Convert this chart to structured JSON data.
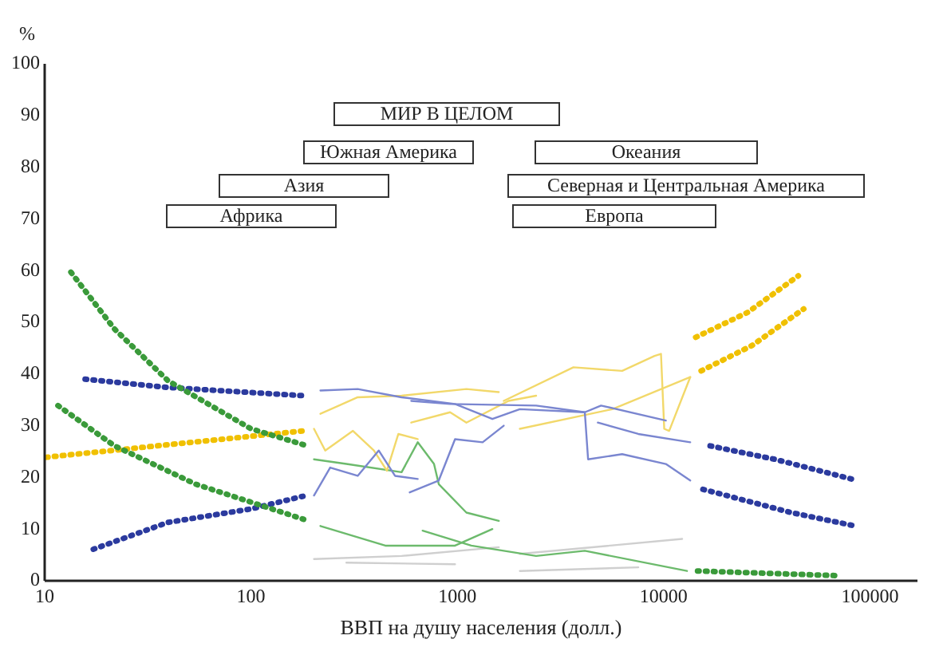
{
  "chart_data": {
    "type": "line",
    "xlabel": "ВВП на душу населения (долл.)",
    "ylabel": "%",
    "log": "x",
    "xlim": [
      10,
      170000
    ],
    "xticks": [
      10,
      100,
      1000,
      10000,
      100000
    ],
    "ylim": [
      0,
      100
    ],
    "yticks": [
      0,
      10,
      20,
      30,
      40,
      50,
      60,
      70,
      80,
      90,
      100
    ],
    "marker": "none",
    "annotations": [
      "МИР В ЦЕЛОМ",
      "Южная Америка",
      "Азия",
      "Африка",
      "Океания",
      "Северная и Центральная Америка",
      "Европа"
    ],
    "series": [
      {
        "color": "#3a9a3a",
        "line_style": "dotted",
        "x": [
          13.4,
          21.8,
          39.6,
          100,
          191
        ],
        "values": [
          59.7,
          48.7,
          38.7,
          29.4,
          26
        ]
      },
      {
        "color": "#3a9a3a",
        "line_style": "dotted",
        "x": [
          11.6,
          21.8,
          53.9,
          180
        ],
        "values": [
          33.9,
          26.1,
          18.7,
          11.9
        ]
      },
      {
        "color": "#2b3a9e",
        "line_style": "dotted",
        "x": [
          15.7,
          39.6,
          180
        ],
        "values": [
          39,
          37.4,
          35.8
        ]
      },
      {
        "color": "#2b3a9e",
        "line_style": "dotted",
        "x": [
          17.2,
          39.6,
          100,
          185
        ],
        "values": [
          6.1,
          11.3,
          13.9,
          16.5
        ]
      },
      {
        "color": "#f0c000",
        "line_style": "dotted",
        "x": [
          10.2,
          29.6,
          73,
          180
        ],
        "values": [
          23.9,
          25.8,
          27.4,
          29
        ]
      },
      {
        "color": "#f0c000",
        "line_style": "dotted",
        "x": [
          14300,
          25500,
          45000
        ],
        "values": [
          47.1,
          51.9,
          59
        ]
      },
      {
        "color": "#f0c000",
        "line_style": "dotted",
        "x": [
          15200,
          26800,
          47800
        ],
        "values": [
          40.6,
          45.5,
          52.6
        ]
      },
      {
        "color": "#2b3a9e",
        "line_style": "dotted",
        "x": [
          16800,
          34600,
          87000
        ],
        "values": [
          26.1,
          23.5,
          19.4
        ]
      },
      {
        "color": "#2b3a9e",
        "line_style": "dotted",
        "x": [
          15500,
          41500,
          85000
        ],
        "values": [
          17.7,
          13.2,
          10.6
        ]
      },
      {
        "color": "#3a9a3a",
        "line_style": "dotted",
        "x": [
          14600,
          70000
        ],
        "values": [
          1.9,
          1.0
        ]
      },
      {
        "color": "#7a86d0",
        "line_style": "solid",
        "x": [
          217,
          329,
          537,
          975,
          1479,
          2010,
          4150,
          4976,
          10250
        ],
        "values": [
          36.8,
          37.1,
          35.5,
          34.2,
          31.3,
          33.2,
          32.6,
          33.9,
          31.0
        ]
      },
      {
        "color": "#7a86d0",
        "line_style": "solid",
        "x": [
          598,
          923,
          2410,
          4150,
          4305,
          6295,
          10250,
          13460
        ],
        "values": [
          34.8,
          34.2,
          33.9,
          32.6,
          23.5,
          24.5,
          22.6,
          19.4
        ]
      },
      {
        "color": "#7a86d0",
        "line_style": "solid",
        "x": [
          202,
          242,
          329,
          416,
          499,
          643
        ],
        "values": [
          16.5,
          21.9,
          20.3,
          25.2,
          20.3,
          19.7
        ]
      },
      {
        "color": "#7a86d0",
        "line_style": "solid",
        "x": [
          588,
          813,
          975,
          1327,
          1679
        ],
        "values": [
          17.1,
          19.4,
          27.4,
          26.8,
          30.0
        ]
      },
      {
        "color": "#7a86d0",
        "line_style": "solid",
        "x": [
          4797,
          7540,
          13460
        ],
        "values": [
          30.6,
          28.4,
          26.8
        ]
      },
      {
        "color": "#f2d86a",
        "line_style": "solid",
        "x": [
          217,
          329,
          537,
          1107,
          1589
        ],
        "values": [
          32.3,
          35.5,
          35.8,
          37.1,
          36.5
        ]
      },
      {
        "color": "#f2d86a",
        "line_style": "solid",
        "x": [
          202,
          229,
          312,
          394,
          456,
          518,
          643
        ],
        "values": [
          29.4,
          25.2,
          29.0,
          25.2,
          21.3,
          28.4,
          27.4
        ]
      },
      {
        "color": "#f2d86a",
        "line_style": "solid",
        "x": [
          598,
          923,
          1107,
          1772,
          2410
        ],
        "values": [
          30.6,
          32.6,
          30.6,
          34.8,
          35.8
        ]
      },
      {
        "color": "#f2d86a",
        "line_style": "solid",
        "x": [
          1679,
          3655,
          6295,
          9040,
          9710,
          10070,
          10640,
          13460
        ],
        "values": [
          34.8,
          41.3,
          40.6,
          43.5,
          43.9,
          29.4,
          29.0,
          39.4
        ]
      },
      {
        "color": "#f2d86a",
        "line_style": "solid",
        "x": [
          2010,
          5650,
          13460
        ],
        "values": [
          29.4,
          33.2,
          39.4
        ]
      },
      {
        "color": "#6cba6c",
        "line_style": "solid",
        "x": [
          202,
          290,
          537,
          643,
          771,
          813,
          1107,
          1589
        ],
        "values": [
          23.5,
          22.6,
          21.0,
          26.8,
          22.6,
          18.7,
          13.2,
          11.6
        ]
      },
      {
        "color": "#6cba6c",
        "line_style": "solid",
        "x": [
          217,
          448,
          975,
          1479
        ],
        "values": [
          10.6,
          6.8,
          6.8,
          10.0
        ]
      },
      {
        "color": "#6cba6c",
        "line_style": "solid",
        "x": [
          679,
          1169,
          2410,
          4150,
          12980
        ],
        "values": [
          9.7,
          6.8,
          4.8,
          5.8,
          1.9
        ]
      },
      {
        "color": "#cfcfcf",
        "line_style": "solid",
        "x": [
          202,
          537,
          1589
        ],
        "values": [
          4.2,
          4.8,
          6.5
        ]
      },
      {
        "color": "#cfcfcf",
        "line_style": "solid",
        "x": [
          290,
          975
        ],
        "values": [
          3.5,
          3.2
        ]
      },
      {
        "color": "#cfcfcf",
        "line_style": "solid",
        "x": [
          2010,
          12300
        ],
        "values": [
          5.2,
          8.1
        ]
      },
      {
        "color": "#cfcfcf",
        "line_style": "solid",
        "x": [
          2010,
          7540
        ],
        "values": [
          1.9,
          2.6
        ]
      }
    ]
  }
}
